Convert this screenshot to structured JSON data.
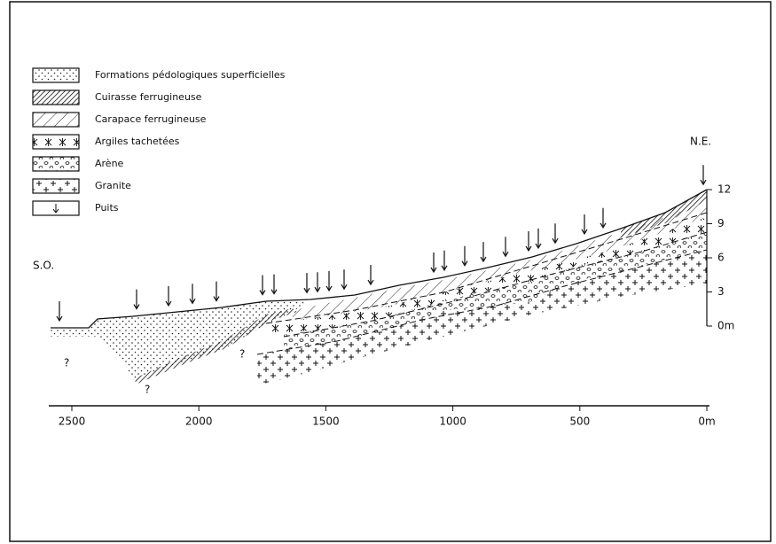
{
  "legend": [
    "Formations pédologiques superficielles",
    "Cuirasse ferrugineuse",
    "Carapace ferrugineuse",
    "Argiles tachetées",
    "Arène",
    "Granite",
    "Puits"
  ],
  "labels": {
    "southwest": "S.O.",
    "northeast": "N.E.",
    "unknown": [
      "?",
      "?",
      "?"
    ]
  },
  "x_axis": {
    "ticks": [
      2500,
      2000,
      1500,
      1000,
      500,
      {
        "value": 0,
        "label": "0m"
      }
    ]
  },
  "y_axis": {
    "ticks": [
      12,
      9,
      6,
      3,
      {
        "value": 0,
        "label": "0m"
      }
    ]
  }
}
